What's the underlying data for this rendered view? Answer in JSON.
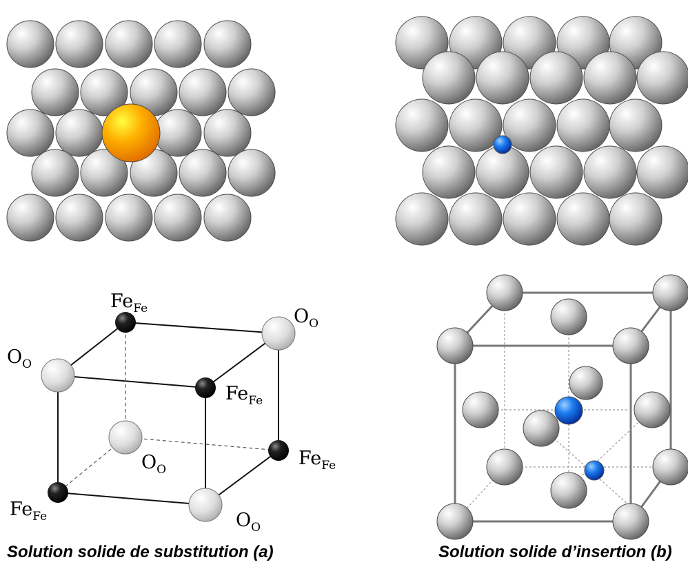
{
  "captions": {
    "a": "Solution solide de substitution (a)",
    "b": "Solution solide d’insertion (b)"
  },
  "labels": {
    "fe_main": "Fe",
    "fe_sub": "Fe",
    "o_main": "O",
    "o_sub": "O"
  },
  "colors": {
    "host_atom": "#b8b8b8",
    "substitutional_atom": "#f5a000",
    "interstitial_atom": "#1565e0",
    "fe_site": "#111111",
    "o_site": "#d4d4d4"
  }
}
